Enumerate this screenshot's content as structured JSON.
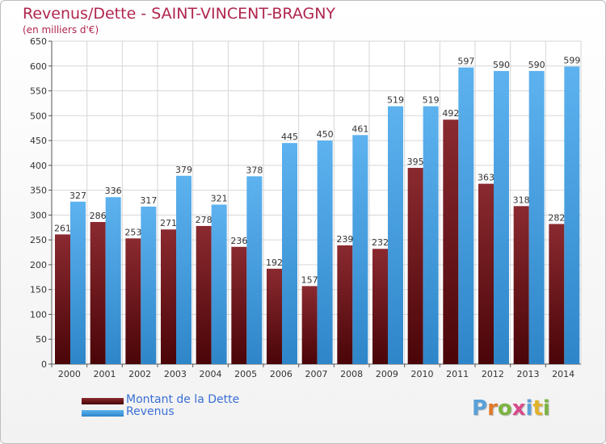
{
  "title": "Revenus/Dette - SAINT-VINCENT-BRAGNY",
  "subtitle": "(en milliers d'€)",
  "chart_data": {
    "type": "bar",
    "categories": [
      "2000",
      "2001",
      "2002",
      "2003",
      "2004",
      "2005",
      "2006",
      "2007",
      "2008",
      "2009",
      "2010",
      "2011",
      "2012",
      "2013",
      "2014"
    ],
    "series": [
      {
        "name": "Montant de la Dette",
        "values": [
          261,
          286,
          253,
          271,
          278,
          236,
          192,
          157,
          239,
          232,
          395,
          492,
          363,
          318,
          282
        ],
        "color": "#6b1218"
      },
      {
        "name": "Revenus",
        "values": [
          327,
          336,
          317,
          379,
          321,
          378,
          445,
          450,
          461,
          519,
          519,
          597,
          590,
          590,
          599
        ],
        "color": "#4ea6e6"
      }
    ],
    "ylim": [
      0,
      650
    ],
    "yticks": [
      0,
      50,
      100,
      150,
      200,
      250,
      300,
      350,
      400,
      450,
      500,
      550,
      600,
      650
    ],
    "grid": true,
    "legend_placement": "bottom-left"
  },
  "logo": {
    "letters": [
      "P",
      "r",
      "o",
      "x",
      "i",
      "t",
      "i"
    ],
    "colors": [
      "#5aa0d8",
      "#e07a2a",
      "#7cb342",
      "#d84a8a",
      "#5aa0d8",
      "#e0b22a",
      "#7cb342"
    ]
  }
}
